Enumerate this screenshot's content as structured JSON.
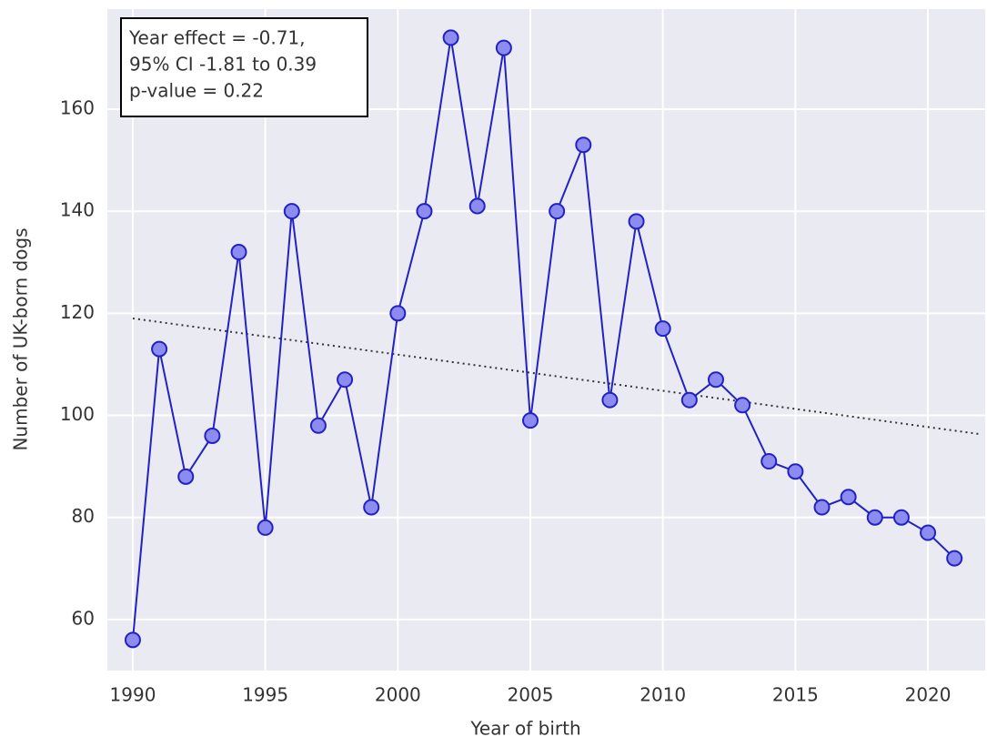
{
  "chart_data": {
    "type": "line",
    "xlabel": "Year of birth",
    "ylabel": "Number of UK-born dogs",
    "annotation": [
      "Year effect = -0.71,",
      "95% CI -1.81 to 0.39",
      "p-value = 0.22"
    ],
    "x": [
      1990,
      1991,
      1992,
      1993,
      1994,
      1995,
      1996,
      1997,
      1998,
      1999,
      2000,
      2001,
      2002,
      2003,
      2004,
      2005,
      2006,
      2007,
      2008,
      2009,
      2010,
      2011,
      2012,
      2013,
      2014,
      2015,
      2016,
      2017,
      2018,
      2019,
      2020,
      2021
    ],
    "series": [
      {
        "color": "#2222c4",
        "marker_color": "#8c8cf0",
        "values": [
          56,
          113,
          88,
          96,
          132,
          78,
          140,
          98,
          107,
          82,
          120,
          140,
          174,
          141,
          172,
          99,
          140,
          153,
          103,
          138,
          117,
          103,
          107,
          102,
          91,
          89,
          82,
          84,
          80,
          80,
          77,
          72
        ]
      }
    ],
    "trend": {
      "x": [
        1990,
        2022
      ],
      "values": [
        119,
        96.3
      ],
      "color": "#333333"
    },
    "xlim": [
      1989.04,
      2022.16
    ],
    "ylim": [
      50,
      179.6
    ],
    "xticks": [
      1990,
      1995,
      2000,
      2005,
      2010,
      2015,
      2020
    ],
    "yticks": [
      60,
      80,
      100,
      120,
      140,
      160
    ],
    "grid": true
  }
}
